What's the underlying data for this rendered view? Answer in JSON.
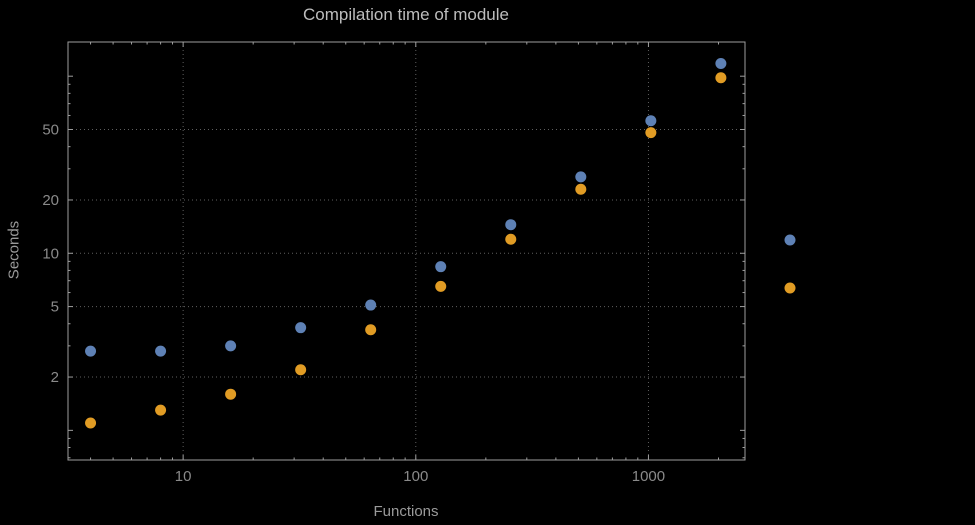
{
  "title": "Compilation time of module",
  "colors": {
    "background": "#000000",
    "frame": "#9e9e9e",
    "grid": "#5f5f5f",
    "tick_label": "#8a8a8a",
    "title_text": "#bdbdbd",
    "axis_label": "#9a9a9a",
    "series_blue": "#5e81b5",
    "series_orange": "#e19c24"
  },
  "chart_data": {
    "type": "scatter",
    "title": "Compilation time of module",
    "xlabel": "Functions",
    "ylabel": "Seconds",
    "xscale": "log",
    "yscale": "log",
    "xlim": [
      3.2,
      2600
    ],
    "ylim": [
      0.68,
      156
    ],
    "xticks": [
      10,
      100,
      1000
    ],
    "yticks": [
      2,
      5,
      10,
      20,
      50
    ],
    "y_unlabeled_major_ticks": [
      1,
      100
    ],
    "grid": "dotted gridlines at major ticks",
    "x": [
      4,
      8,
      16,
      32,
      64,
      128,
      256,
      512,
      1024,
      2048
    ],
    "series": [
      {
        "name": "blue",
        "color": "#5e81b5",
        "values": [
          2.8,
          2.8,
          3.0,
          3.8,
          5.1,
          8.4,
          14.5,
          27,
          56,
          118
        ]
      },
      {
        "name": "orange",
        "color": "#e19c24",
        "values": [
          1.1,
          1.3,
          1.6,
          2.2,
          3.7,
          6.5,
          12,
          23,
          48,
          98
        ]
      }
    ],
    "legend": {
      "position": "right-of-plot",
      "entries": [
        {
          "marker_color": "#5e81b5",
          "label": ""
        },
        {
          "marker_color": "#e19c24",
          "label": ""
        }
      ]
    }
  }
}
